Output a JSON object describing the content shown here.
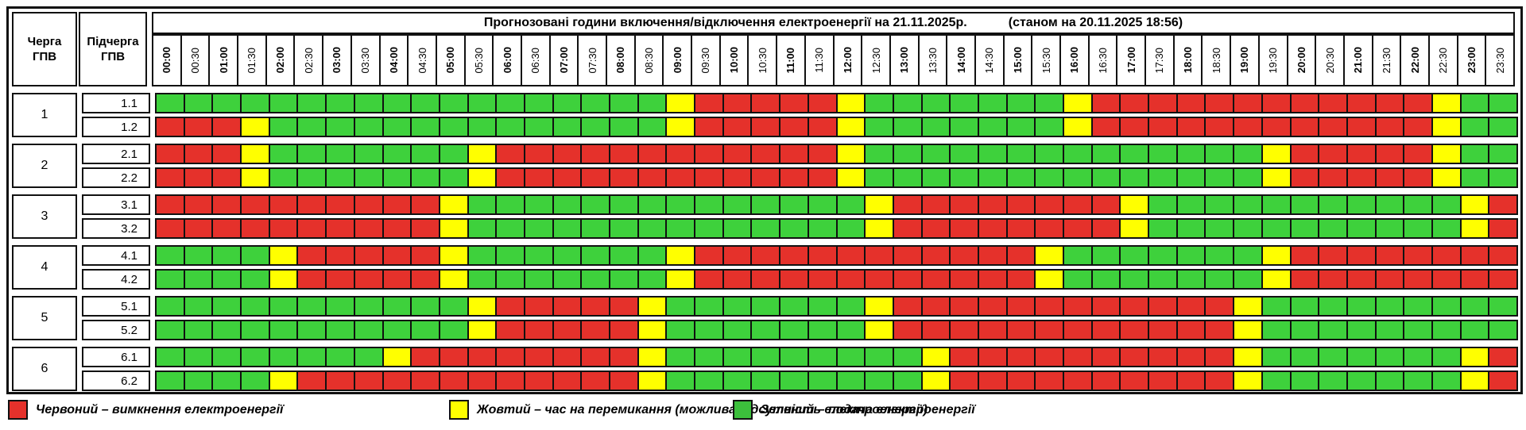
{
  "title": "Прогнозовані години включення/відключення електроенергії на 21.11.2025р.",
  "as_of": "(станом на 20.11.2025 18:56)",
  "header": {
    "queue_col": [
      "Черга",
      "ГПВ"
    ],
    "subqueue_col": [
      "Підчерга",
      "ГПВ"
    ]
  },
  "colors": {
    "G": "#3ed13c",
    "Y": "#ffff00",
    "R": "#e5312b",
    "legend_G": "#3cbf3c",
    "grid_line": "#111111"
  },
  "legend": [
    {
      "key": "R",
      "label": "Червоний – вимкнення електроенергії"
    },
    {
      "key": "Y",
      "label": "Жовтий – час на перемикання (можлива відсутність електроенергії)"
    },
    {
      "key": "G",
      "label": "Зелений – подача електроенергії"
    }
  ],
  "chart_data": {
    "type": "heatmap",
    "x_labels": [
      "00:00",
      "00:30",
      "01:00",
      "01:30",
      "02:00",
      "02:30",
      "03:00",
      "03:30",
      "04:00",
      "04:30",
      "05:00",
      "05:30",
      "06:00",
      "06:30",
      "07:00",
      "07:30",
      "08:00",
      "08:30",
      "09:00",
      "09:30",
      "10:00",
      "10:30",
      "11:00",
      "11:30",
      "12:00",
      "12:30",
      "13:00",
      "13:30",
      "14:00",
      "14:30",
      "15:00",
      "15:30",
      "16:00",
      "16:30",
      "17:00",
      "17:30",
      "18:00",
      "18:30",
      "19:00",
      "19:30",
      "20:00",
      "20:30",
      "21:00",
      "21:30",
      "22:00",
      "22:30",
      "23:00",
      "23:30"
    ],
    "status_meaning": {
      "R": "вимкнення електроенергії",
      "Y": "час на перемикання",
      "G": "подача електроенергії"
    },
    "groups": [
      {
        "queue": "1",
        "rows": [
          {
            "label": "1.1",
            "statuses": "GGGGGGGGGGGGGGGGGGYRRRRRYGGGGGGGYRRRRRRRRRRRRYGG"
          },
          {
            "label": "1.2",
            "statuses": "RRRYGGGGGGGGGGGGGGYRRRRRYGGGGGGGYRRRRRRRRRRRRYGG"
          }
        ]
      },
      {
        "queue": "2",
        "rows": [
          {
            "label": "2.1",
            "statuses": "RRRYGGGGGGGYRRRRRRRRRRRRYGGGGGGGGGGGGGGYRRRRRYGG"
          },
          {
            "label": "2.2",
            "statuses": "RRRYGGGGGGGYRRRRRRRRRRRRYGGGGGGGGGGGGGGYRRRRRYGG"
          }
        ]
      },
      {
        "queue": "3",
        "rows": [
          {
            "label": "3.1",
            "statuses": "RRRRRRRRRRYGGGGGGGGGGGGGGYRRRRRRRRYGGGGGGGGGGGYR"
          },
          {
            "label": "3.2",
            "statuses": "RRRRRRRRRRYGGGGGGGGGGGGGGYRRRRRRRRYGGGGGGGGGGGYR"
          }
        ]
      },
      {
        "queue": "4",
        "rows": [
          {
            "label": "4.1",
            "statuses": "GGGGYRRRRRYGGGGGGGYRRRRRRRRRRRRYGGGGGGGYRRRRRRRR"
          },
          {
            "label": "4.2",
            "statuses": "GGGGYRRRRRYGGGGGGGYRRRRRRRRRRRRYGGGGGGGYRRRRRRRR"
          }
        ]
      },
      {
        "queue": "5",
        "rows": [
          {
            "label": "5.1",
            "statuses": "GGGGGGGGGGGYRRRRRYGGGGGGGYRRRRRRRRRRRRYGGGGGGGGG"
          },
          {
            "label": "5.2",
            "statuses": "GGGGGGGGGGGYRRRRRYGGGGGGGYRRRRRRRRRRRRYGGGGGGGGG"
          }
        ]
      },
      {
        "queue": "6",
        "rows": [
          {
            "label": "6.1",
            "statuses": "GGGGGGGGYRRRRRRRRYGGGGGGGGGYRRRRRRRRRRYGGGGGGGYR"
          },
          {
            "label": "6.2",
            "statuses": "GGGGYRRRRRRRRRRRRYGGGGGGGGGYRRRRRRRRRRYGGGGGGGYR"
          }
        ]
      }
    ]
  }
}
